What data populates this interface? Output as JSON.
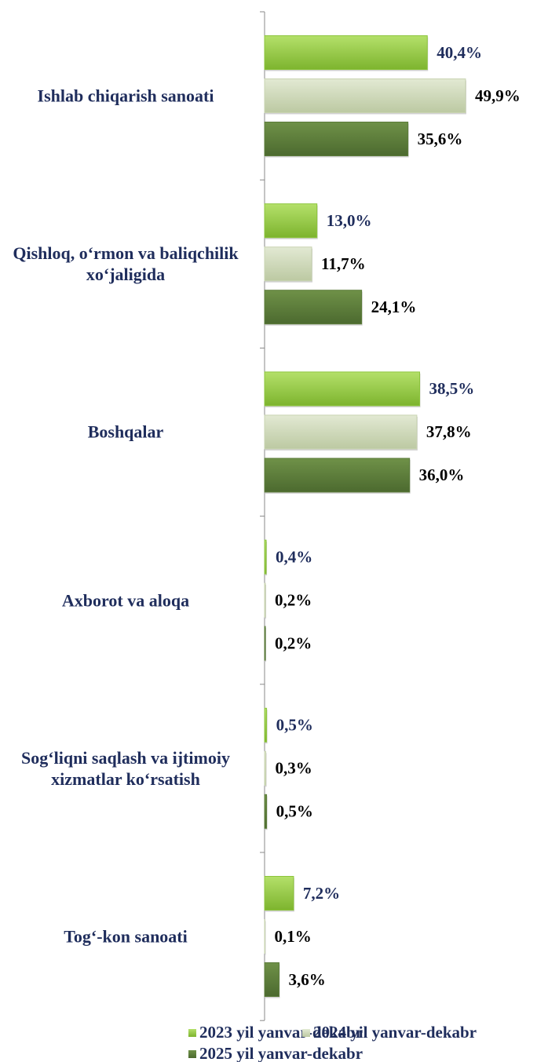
{
  "chart_data": {
    "type": "bar",
    "orientation": "horizontal",
    "categories": [
      "Ishlab chiqarish sanoati",
      "Qishloq, o‘rmon va baliqchilik xo‘jaligida",
      "Boshqalar",
      "Axborot va aloqa",
      "Sog‘liqni saqlash va ijtimoiy xizmatlar ko‘rsatish",
      "Tog‘-kon sanoati"
    ],
    "series": [
      {
        "name": "2023 yil yanvar-dekabr",
        "color": "#8cc43c",
        "values": [
          40.4,
          13.0,
          38.5,
          0.4,
          0.5,
          7.2
        ],
        "value_labels": [
          "40,4%",
          "13,0%",
          "38,5%",
          "0,4%",
          "0,5%",
          "7,2%"
        ]
      },
      {
        "name": "2024 yil yanvar-dekabr",
        "color": "#c9d4b2",
        "values": [
          49.9,
          11.7,
          37.8,
          0.2,
          0.3,
          0.1
        ],
        "value_labels": [
          "49,9%",
          "11,7%",
          "37,8%",
          "0,2%",
          "0,3%",
          "0,1%"
        ]
      },
      {
        "name": "2025 yil yanvar-dekabr",
        "color": "#5b7b3a",
        "values": [
          35.6,
          24.1,
          36.0,
          0.2,
          0.5,
          3.6
        ],
        "value_labels": [
          "35,6%",
          "24,1%",
          "36,0%",
          "0,2%",
          "0,5%",
          "3,6%"
        ]
      }
    ],
    "legend": "bottom"
  }
}
